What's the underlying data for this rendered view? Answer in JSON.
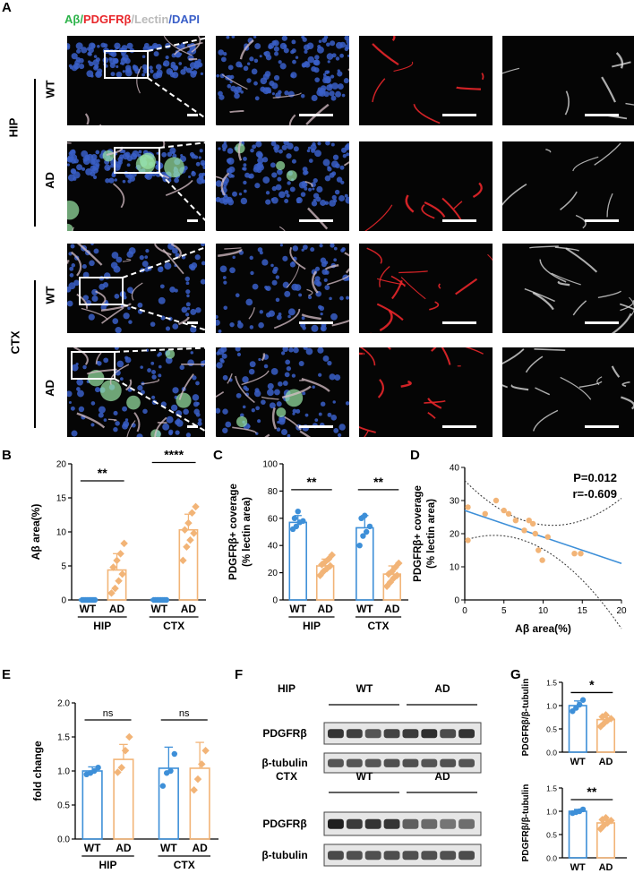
{
  "panel_letters": {
    "A": "A",
    "B": "B",
    "C": "C",
    "D": "D",
    "E": "E",
    "F": "F",
    "G": "G"
  },
  "legend_A": {
    "ab": "Aβ",
    "pdgfrb": "PDGFRβ",
    "lectin": "Lectin",
    "dapi": "DAPI",
    "sep": "/"
  },
  "row_groups": {
    "hip": "HIP",
    "ctx": "CTX"
  },
  "row_labels": [
    "WT",
    "AD",
    "WT",
    "AD"
  ],
  "colors": {
    "wt": "#3d8fd8",
    "ad": "#f2b477",
    "ab": "#2db34a",
    "pdgfrb": "#e8262a",
    "lectin": "#b9b9b9",
    "dapi": "#3a5fc8"
  },
  "chart_data": [
    {
      "id": "B",
      "type": "bar",
      "ylabel": "Aβ area(%)",
      "ylim": [
        0,
        20
      ],
      "yticks": [
        0,
        5,
        10,
        15,
        20
      ],
      "categories": [
        "WT",
        "AD",
        "WT",
        "AD"
      ],
      "groups": [
        "HIP",
        "CTX"
      ],
      "values": [
        0,
        4.4,
        0,
        10.3
      ],
      "errors": [
        0,
        2.4,
        0,
        2.3
      ],
      "points": [
        [
          0,
          0,
          0,
          0,
          0,
          0,
          0,
          0
        ],
        [
          1.0,
          1.7,
          2.8,
          3.8,
          4.8,
          5.8,
          6.8,
          8.3
        ],
        [
          0,
          0,
          0,
          0,
          0,
          0,
          0,
          0
        ],
        [
          5.8,
          7.8,
          8.8,
          9.8,
          10.3,
          11.3,
          12.8,
          13.7
        ]
      ],
      "sig": [
        {
          "label": "**",
          "from": 0,
          "to": 1,
          "y": 17.5
        },
        {
          "label": "****",
          "from": 2,
          "to": 3,
          "y": 20.2
        }
      ]
    },
    {
      "id": "C",
      "type": "bar",
      "ylabel": "PDGFRβ+ coverage\n(% lectin area)",
      "ylim": [
        0,
        100
      ],
      "yticks": [
        0,
        20,
        40,
        60,
        80,
        100
      ],
      "categories": [
        "WT",
        "AD",
        "WT",
        "AD"
      ],
      "groups": [
        "HIP",
        "CTX"
      ],
      "values": [
        57,
        25,
        53,
        19
      ],
      "errors": [
        5,
        5,
        9,
        6
      ],
      "points": [
        [
          52,
          54,
          57,
          58,
          60,
          65
        ],
        [
          18,
          21,
          23,
          25,
          26,
          28,
          30,
          33
        ],
        [
          40,
          47,
          50,
          54,
          60,
          62
        ],
        [
          10,
          13,
          16,
          18,
          19,
          21,
          24,
          27
        ]
      ],
      "sig": [
        {
          "label": "**",
          "from": 0,
          "to": 1,
          "y": 81
        },
        {
          "label": "**",
          "from": 2,
          "to": 3,
          "y": 81
        }
      ]
    },
    {
      "id": "D",
      "type": "scatter",
      "ylabel": "PDGFRβ+ coverage\n(% lectin area)",
      "xlabel": "Aβ area(%)",
      "xlim": [
        0,
        20
      ],
      "ylim": [
        0,
        40
      ],
      "xticks": [
        0,
        5,
        10,
        15,
        20
      ],
      "yticks": [
        0,
        10,
        20,
        30,
        40
      ],
      "points": [
        [
          0.4,
          18
        ],
        [
          0.4,
          28
        ],
        [
          2.6,
          26
        ],
        [
          4.0,
          30
        ],
        [
          5.0,
          27
        ],
        [
          5.6,
          26
        ],
        [
          6.5,
          24
        ],
        [
          7.6,
          21
        ],
        [
          8.2,
          24
        ],
        [
          8.7,
          23
        ],
        [
          9.0,
          20
        ],
        [
          9.4,
          15
        ],
        [
          9.9,
          12
        ],
        [
          10.6,
          19
        ],
        [
          14.0,
          14
        ],
        [
          14.8,
          14
        ]
      ],
      "fit": {
        "intercept": 27,
        "slope": -0.8
      },
      "annotations": [
        "P=0.012",
        "r=-0.609"
      ]
    },
    {
      "id": "E",
      "type": "bar",
      "ylabel": "fold change",
      "ylim": [
        0,
        2.0
      ],
      "yticks": [
        "0.0",
        "0.5",
        "1.0",
        "1.5",
        "2.0"
      ],
      "categories": [
        "WT",
        "AD",
        "WT",
        "AD"
      ],
      "groups": [
        "HIP",
        "CTX"
      ],
      "values": [
        1.0,
        1.17,
        1.04,
        1.04
      ],
      "errors": [
        0.06,
        0.22,
        0.31,
        0.38
      ],
      "points": [
        [
          0.95,
          0.97,
          1.0,
          1.05
        ],
        [
          0.98,
          1.05,
          1.3,
          1.5
        ],
        [
          0.78,
          0.97,
          1.0,
          1.25
        ],
        [
          0.72,
          0.88,
          1.1,
          1.3
        ]
      ],
      "sig": [
        {
          "label": "ns",
          "from": 0,
          "to": 1,
          "y": 1.75
        },
        {
          "label": "ns",
          "from": 2,
          "to": 3,
          "y": 1.75
        }
      ]
    },
    {
      "id": "G1",
      "type": "bar",
      "ylabel": "PDGFRβ/β-tubulin",
      "ylim": [
        0,
        1.5
      ],
      "yticks": [
        "0.0",
        "0.5",
        "1.0",
        "1.5"
      ],
      "categories": [
        "WT",
        "AD"
      ],
      "values": [
        1.0,
        0.7
      ],
      "errors": [
        0.1,
        0.08
      ],
      "points": [
        [
          0.88,
          0.95,
          1.02,
          1.12
        ],
        [
          0.55,
          0.62,
          0.68,
          0.72,
          0.76,
          0.8
        ]
      ],
      "sig": [
        {
          "label": "*",
          "from": 0,
          "to": 1,
          "y": 1.28
        }
      ]
    },
    {
      "id": "G2",
      "type": "bar",
      "ylabel": "PDGFRβ/β-tubulin",
      "ylim": [
        0,
        1.5
      ],
      "yticks": [
        "0.0",
        "0.5",
        "1.0",
        "1.5"
      ],
      "categories": [
        "WT",
        "AD"
      ],
      "values": [
        1.0,
        0.75
      ],
      "errors": [
        0.04,
        0.07
      ],
      "points": [
        [
          0.96,
          0.98,
          1.0,
          1.04
        ],
        [
          0.62,
          0.7,
          0.75,
          0.8,
          0.82,
          0.86
        ]
      ],
      "sig": [
        {
          "label": "**",
          "from": 0,
          "to": 1,
          "y": 1.25
        }
      ]
    }
  ],
  "blot": {
    "hip": "HIP",
    "ctx": "CTX",
    "wt": "WT",
    "ad": "AD",
    "pdgfrb": "PDGFRβ",
    "tubulin": "β-tubulin",
    "hip_pdgfrb": [
      0.85,
      0.8,
      0.7,
      0.78,
      0.82,
      0.88,
      0.74,
      0.85
    ],
    "hip_tub": [
      0.7,
      0.7,
      0.7,
      0.72,
      0.72,
      0.7,
      0.72,
      0.7
    ],
    "ctx_pdgfrb": [
      0.95,
      0.82,
      0.85,
      0.85,
      0.65,
      0.6,
      0.55,
      0.58
    ],
    "ctx_tub": [
      0.75,
      0.72,
      0.72,
      0.73,
      0.72,
      0.72,
      0.72,
      0.74
    ]
  }
}
